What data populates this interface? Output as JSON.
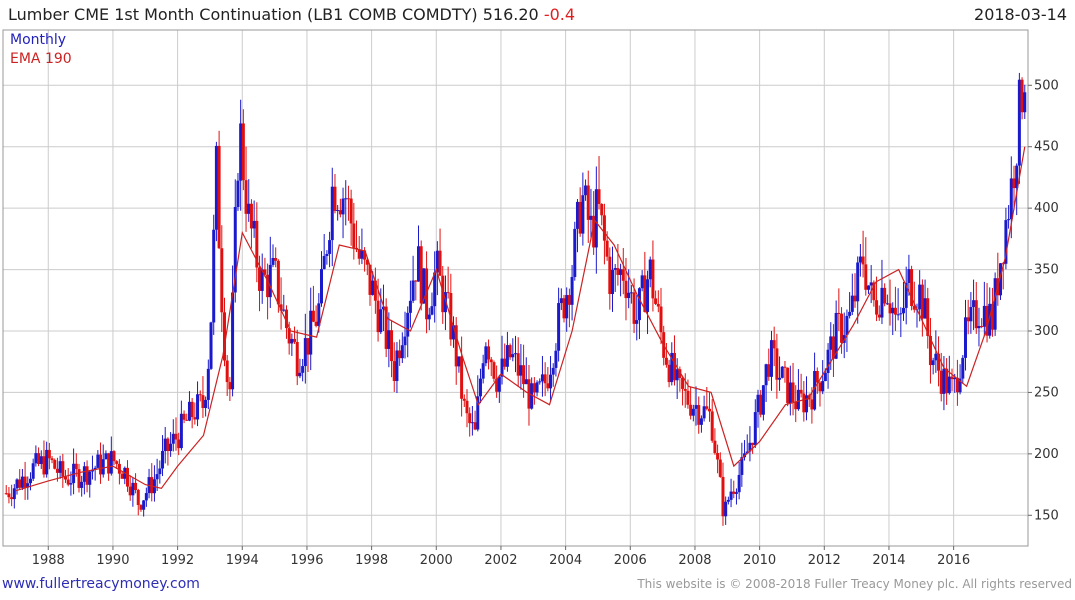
{
  "header": {
    "title": "Lumber CME 1st Month Continuation (LB1 COMB COMDTY) 516.20",
    "change": "-0.4",
    "date": "2018-03-14"
  },
  "legend": {
    "monthly": "Monthly",
    "ema": "EMA 190"
  },
  "footer": {
    "site": "www.fullertreacymoney.com",
    "copyright": "This website is © 2008-2018 Fuller Treacy Money plc. All rights reserved"
  },
  "colors": {
    "up": "#1a1acc",
    "down": "#e01010",
    "ema": "#cc2222",
    "grid": "#cccccc"
  },
  "chart_data": {
    "type": "line",
    "title": "Lumber CME 1st Month Continuation (LB1 COMB COMDTY)",
    "series_style": "monthly high-low bars (blue up, red down) with EMA overlay",
    "xlim": [
      1986.6,
      2018.3
    ],
    "ylim": [
      125,
      545
    ],
    "x_ticks": [
      1988,
      1990,
      1992,
      1994,
      1996,
      1998,
      2000,
      2002,
      2004,
      2006,
      2008,
      2010,
      2012,
      2014,
      2016
    ],
    "x_tick_labels": [
      "1988",
      "1990",
      "1992",
      "1994",
      "1996",
      "1998",
      "2000",
      "2002",
      "2004",
      "2006",
      "2008",
      "2010",
      "2012",
      "2014",
      "2016"
    ],
    "y_ticks": [
      150,
      200,
      250,
      300,
      350,
      400,
      450,
      500
    ],
    "y_tick_labels": [
      "150",
      "200",
      "250",
      "300",
      "350",
      "400",
      "450",
      "500"
    ],
    "last_value": 516.2,
    "series": [
      {
        "name": "Monthly",
        "x": [
          1986.7,
          1987.0,
          1987.5,
          1987.8,
          1988.0,
          1988.5,
          1989.0,
          1989.5,
          1990.0,
          1990.4,
          1990.8,
          1991.0,
          1991.3,
          1991.6,
          1992.0,
          1992.5,
          1992.8,
          1993.0,
          1993.2,
          1993.4,
          1993.6,
          1993.9,
          1994.2,
          1994.6,
          1995.0,
          1995.4,
          1995.7,
          1996.0,
          1996.4,
          1996.8,
          1997.2,
          1997.6,
          1998.0,
          1998.4,
          1998.7,
          1999.0,
          1999.4,
          1999.7,
          2000.0,
          2000.5,
          2000.9,
          2001.2,
          2001.5,
          2001.9,
          2002.3,
          2002.7,
          2003.0,
          2003.4,
          2003.8,
          2004.2,
          2004.5,
          2004.8,
          2005.0,
          2005.4,
          2005.8,
          2006.2,
          2006.6,
          2007.0,
          2007.5,
          2008.0,
          2008.5,
          2008.9,
          2009.1,
          2009.5,
          2010.0,
          2010.3,
          2010.7,
          2011.2,
          2011.6,
          2012.0,
          2012.4,
          2012.8,
          2013.2,
          2013.5,
          2013.9,
          2014.3,
          2014.6,
          2015.0,
          2015.3,
          2015.7,
          2016.0,
          2016.3,
          2016.8,
          2017.2,
          2017.5,
          2017.8,
          2018.0,
          2018.2
        ],
        "y": [
          168,
          175,
          188,
          192,
          195,
          180,
          183,
          190,
          195,
          185,
          160,
          168,
          180,
          200,
          215,
          235,
          240,
          290,
          430,
          310,
          240,
          470,
          390,
          340,
          345,
          300,
          280,
          290,
          320,
          420,
          410,
          360,
          335,
          300,
          270,
          310,
          360,
          320,
          350,
          300,
          230,
          215,
          300,
          260,
          280,
          260,
          240,
          260,
          310,
          350,
          410,
          380,
          400,
          340,
          350,
          310,
          350,
          290,
          250,
          240,
          230,
          150,
          170,
          190,
          240,
          280,
          260,
          240,
          250,
          270,
          300,
          310,
          360,
          320,
          340,
          300,
          340,
          330,
          280,
          260,
          250,
          290,
          320,
          310,
          370,
          420,
          470,
          516
        ]
      },
      {
        "name": "EMA 190",
        "x": [
          1987.0,
          1988.0,
          1989.0,
          1990.0,
          1991.0,
          1991.5,
          1992.0,
          1992.8,
          1993.4,
          1994.0,
          1994.8,
          1995.5,
          1996.3,
          1997.0,
          1997.8,
          1998.5,
          1999.2,
          2000.0,
          2000.8,
          2001.3,
          2002.0,
          2002.8,
          2003.5,
          2004.2,
          2004.9,
          2005.5,
          2006.2,
          2007.0,
          2007.8,
          2008.5,
          2009.2,
          2010.0,
          2010.8,
          2011.5,
          2012.2,
          2012.9,
          2013.6,
          2014.3,
          2015.0,
          2015.7,
          2016.4,
          2017.0,
          2017.6,
          2018.2
        ],
        "y": [
          170,
          178,
          185,
          190,
          175,
          172,
          190,
          215,
          280,
          380,
          340,
          300,
          295,
          370,
          365,
          310,
          300,
          350,
          280,
          240,
          265,
          250,
          240,
          300,
          390,
          370,
          330,
          290,
          255,
          250,
          190,
          210,
          240,
          245,
          275,
          305,
          340,
          350,
          310,
          270,
          255,
          300,
          360,
          450
        ]
      }
    ]
  }
}
